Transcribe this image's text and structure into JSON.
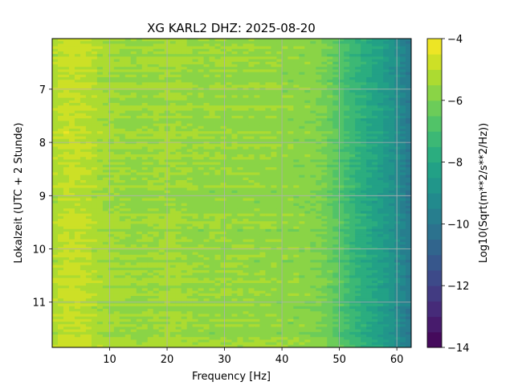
{
  "chart_data": {
    "type": "heatmap",
    "title": "XG KARL2  DHZ: 2025-08-20",
    "xlabel": "Frequency [Hz]",
    "ylabel": "Lokalzeit (UTC + 2 Stunde)",
    "xlim": [
      0,
      62.5
    ],
    "ylim": [
      6.05,
      11.85
    ],
    "y_inverted": true,
    "grid": true,
    "xticks": [
      "10",
      "20",
      "30",
      "40",
      "50",
      "60"
    ],
    "xtick_values": [
      10,
      20,
      30,
      40,
      50,
      60
    ],
    "yticks": [
      "7",
      "8",
      "9",
      "10",
      "11"
    ],
    "ytick_values": [
      7,
      8,
      9,
      10,
      11
    ],
    "colormap": "viridis",
    "color_levels": 20,
    "colorbar": {
      "label": "Log10(Sqrt(m**2/s**2/Hz))",
      "range": [
        -14,
        -4
      ],
      "ticks": [
        "−4",
        "−6",
        "−8",
        "−10",
        "−12",
        "−14"
      ],
      "tick_values": [
        -4,
        -6,
        -8,
        -10,
        -12,
        -14
      ]
    },
    "frequency_profile": {
      "frequency_hz": [
        0,
        2,
        4,
        6,
        8,
        10,
        15,
        20,
        25,
        30,
        35,
        40,
        45,
        47,
        49,
        51,
        53,
        55,
        57,
        59,
        61,
        62.5
      ],
      "level": [
        -5.3,
        -4.9,
        -4.9,
        -5.0,
        -5.3,
        -5.4,
        -5.6,
        -5.4,
        -5.6,
        -5.6,
        -5.6,
        -5.7,
        -5.8,
        -6.0,
        -6.4,
        -7.0,
        -7.5,
        -7.9,
        -8.3,
        -8.8,
        -9.5,
        -10.0
      ]
    }
  }
}
